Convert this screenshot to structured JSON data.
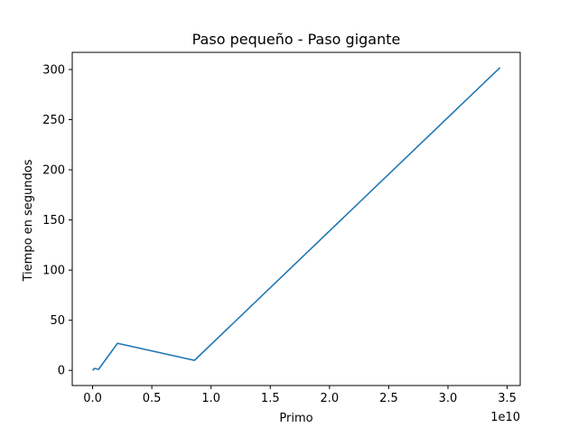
{
  "chart_data": {
    "type": "line",
    "title": "Paso pequeño - Paso gigante",
    "xlabel": "Primo",
    "ylabel": "Tiempo en segundos",
    "x_offset_label": "1e10",
    "xlim": [
      -1720000000.0,
      36100000000.0
    ],
    "ylim": [
      -15.1,
      317.1
    ],
    "x_ticks": [
      0,
      5000000000.0,
      10000000000.0,
      15000000000.0,
      20000000000.0,
      25000000000.0,
      30000000000.0,
      35000000000.0
    ],
    "x_tick_labels": [
      "0.0",
      "0.5",
      "1.0",
      "1.5",
      "2.0",
      "2.5",
      "3.0",
      "3.5"
    ],
    "y_ticks": [
      0,
      50,
      100,
      150,
      200,
      250,
      300
    ],
    "y_tick_labels": [
      "0",
      "50",
      "100",
      "150",
      "200",
      "250",
      "300"
    ],
    "grid": false,
    "series": [
      {
        "color": "#1f77b4",
        "x": [
          0,
          150000000.0,
          500000000.0,
          2100000000.0,
          8600000000.0,
          34400000000.0
        ],
        "y": [
          0,
          2,
          1,
          27,
          10,
          302
        ]
      }
    ]
  }
}
